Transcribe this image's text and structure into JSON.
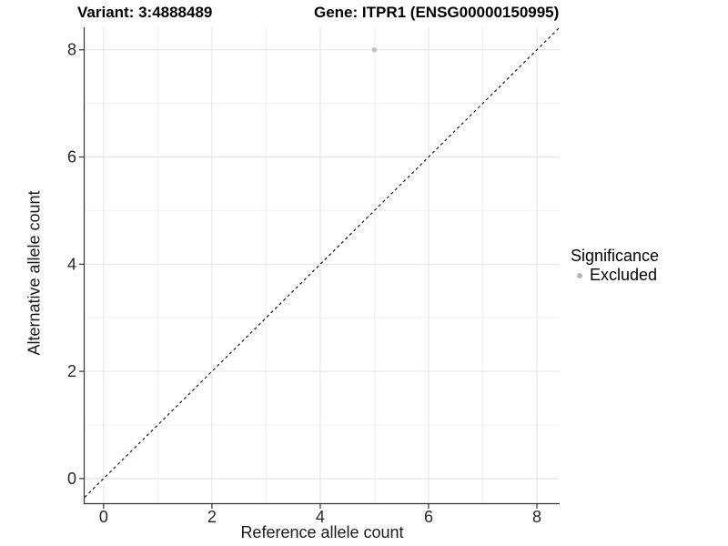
{
  "figure": {
    "title_variant": "Variant: 3:4888489",
    "title_gene": "Gene: ITPR1 (ENSG00000150995)"
  },
  "chart_data": {
    "type": "scatter",
    "title": "Variant: 3:4888489    Gene: ITPR1 (ENSG00000150995)",
    "xlabel": "Reference allele count",
    "ylabel": "Alternative allele count",
    "xlim": [
      -0.35,
      8.42
    ],
    "ylim": [
      -0.46,
      8.42
    ],
    "x_ticks": [
      0,
      2,
      4,
      6,
      8
    ],
    "y_ticks": [
      0,
      2,
      4,
      6,
      8
    ],
    "x_minor_ticks": [
      1,
      3,
      5,
      7
    ],
    "y_minor_ticks": [
      1,
      3,
      5,
      7
    ],
    "grid": "major+minor",
    "series": [
      {
        "name": "Excluded",
        "color": "#c1c1c1",
        "point_radius": 2.8,
        "points": [
          {
            "x": 5,
            "y": 8
          }
        ]
      }
    ],
    "reference_line": {
      "kind": "identity",
      "equation": "y = x",
      "style": "dashed",
      "color": "#000000"
    },
    "legend": {
      "title": "Significance",
      "position": "right",
      "entries": [
        {
          "label": "Excluded",
          "color": "#b5b5b5"
        }
      ]
    },
    "axis_color": "#333333",
    "tick_label_color": "#262626",
    "grid_major_color": "#e4e4e4",
    "grid_minor_color": "#f0f0f0",
    "background": "#ffffff"
  }
}
